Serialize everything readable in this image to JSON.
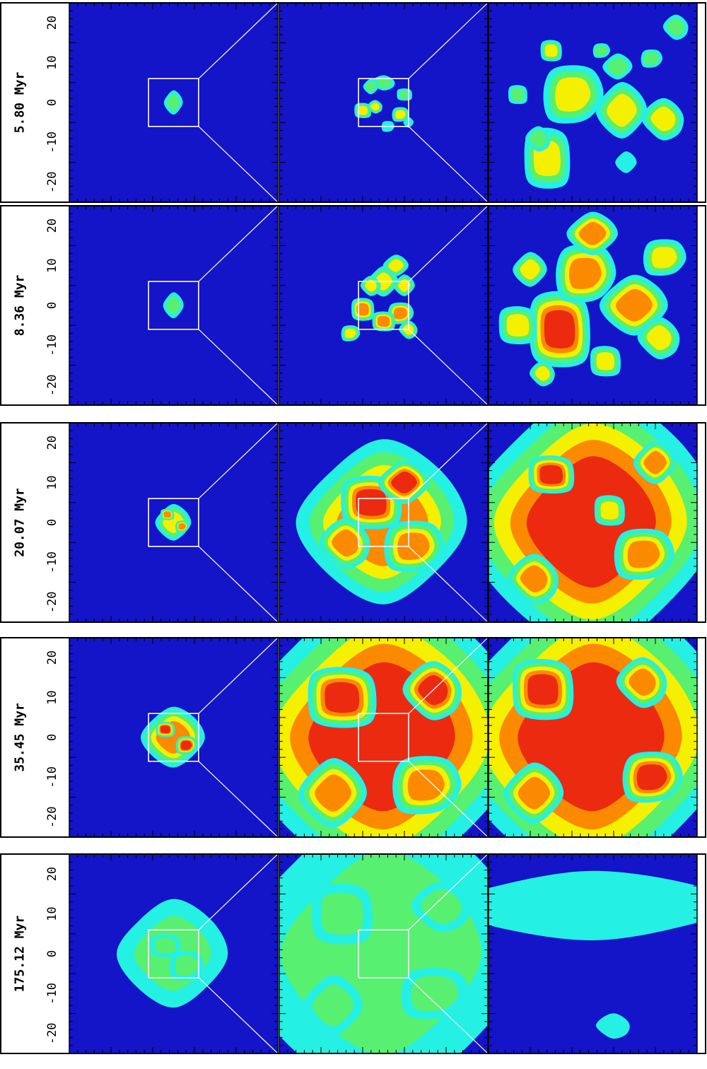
{
  "figure": {
    "palette": {
      "background": "#1414c8",
      "cyan": "#24f0e4",
      "green": "#58f070",
      "yellow": "#f4f000",
      "orange": "#fc8a00",
      "red": "#ec2a10",
      "pink": "#f6a8a0",
      "white": "#ffffff",
      "frame": "#000000",
      "zoom_line": "#ffffff"
    },
    "axis_tick_labels": [
      "20",
      "10",
      "0",
      "-10",
      "-20"
    ],
    "rows": [
      {
        "time_label": "5.80 Myr",
        "blobs": [
          [
            [
              0,
              0,
              2.2,
              2.8,
              2,
              0
            ]
          ],
          [
            [
              0,
              5,
              2.8,
              1.8,
              2,
              3
            ],
            [
              -5,
              -2,
              2.2,
              2.0,
              3,
              1
            ],
            [
              4,
              -3,
              2.0,
              2.0,
              3,
              2
            ],
            [
              -3,
              4,
              1.8,
              1.8,
              2,
              0
            ],
            [
              5,
              2,
              2.0,
              1.6,
              2,
              1
            ],
            [
              1,
              -6,
              1.5,
              1.5,
              1,
              2
            ],
            [
              -2,
              -1,
              1.8,
              1.6,
              3,
              3
            ],
            [
              6,
              -5,
              1.2,
              1.2,
              1,
              0
            ]
          ],
          [
            [
              7,
              -2,
              6,
              6.5,
              3,
              0
            ],
            [
              -11,
              -14,
              6,
              8,
              3,
              1
            ],
            [
              -5,
              2,
              7,
              8,
              3,
              2
            ],
            [
              17,
              -4,
              5,
              5,
              3,
              3
            ],
            [
              6,
              9,
              3.5,
              3,
              2,
              0
            ],
            [
              -10,
              13,
              2.8,
              2.8,
              3,
              1
            ],
            [
              14,
              11,
              2.5,
              2.5,
              2,
              2
            ],
            [
              -13,
              -9,
              3,
              3,
              2,
              3
            ],
            [
              8,
              -15,
              2.5,
              2.5,
              1,
              0
            ],
            [
              -18,
              2,
              2.5,
              2.5,
              2,
              1
            ],
            [
              2,
              13,
              2,
              2,
              2,
              2
            ],
            [
              20,
              19,
              3,
              3,
              2,
              3
            ]
          ]
        ]
      },
      {
        "time_label": "8.36 Myr",
        "blobs": [
          [
            [
              0,
              0,
              2.4,
              3.0,
              2,
              0
            ]
          ],
          [
            [
              0,
              6,
              3.5,
              3.5,
              3,
              0
            ],
            [
              -5,
              -1,
              3.0,
              3.0,
              4,
              1
            ],
            [
              4,
              -2,
              3.0,
              3.0,
              4,
              2
            ],
            [
              -3,
              5,
              2.4,
              2.4,
              3,
              3
            ],
            [
              5,
              5,
              2.5,
              2.5,
              3,
              0
            ],
            [
              0,
              -4,
              3.0,
              2.6,
              4,
              1
            ],
            [
              -8,
              -7,
              2.2,
              2.2,
              3,
              2
            ],
            [
              6,
              -6,
              2.2,
              2.2,
              3,
              3
            ],
            [
              3,
              10,
              3.0,
              2.5,
              3,
              0
            ]
          ],
          [
            [
              10,
              0,
              8,
              7,
              4,
              0
            ],
            [
              -8,
              -6,
              8,
              10,
              5,
              1
            ],
            [
              -2,
              8,
              7,
              8,
              4,
              2
            ],
            [
              16,
              -8,
              5,
              5,
              3,
              3
            ],
            [
              -15,
              9,
              4,
              4,
              3,
              0
            ],
            [
              3,
              -14,
              4,
              4,
              3,
              1
            ],
            [
              17,
              12,
              5,
              5,
              3,
              2
            ],
            [
              -12,
              -17,
              3,
              3,
              3,
              3
            ],
            [
              0,
              18,
              6,
              5,
              4,
              0
            ],
            [
              -18,
              -5,
              5,
              5,
              3,
              1
            ]
          ]
        ]
      },
      {
        "time_label": "20.07 Myr",
        "blobs": [
          [
            [
              0,
              0,
              4.2,
              4.2,
              3,
              0
            ],
            [
              -1.5,
              2,
              1.8,
              1.5,
              4,
              1
            ],
            [
              2,
              -1,
              1.6,
              1.6,
              4,
              2
            ]
          ],
          [
            [
              0,
              0,
              20,
              19,
              4,
              0
            ],
            [
              -3,
              5,
              8,
              7,
              5,
              1
            ],
            [
              7,
              -6,
              7,
              7,
              4,
              2
            ],
            [
              -9,
              -5,
              6,
              6,
              4,
              3
            ],
            [
              5,
              10,
              6,
              5,
              5,
              0
            ]
          ],
          [
            [
              0,
              0,
              30,
              30,
              5,
              0
            ],
            [
              -10,
              12,
              6,
              5,
              5,
              1
            ],
            [
              12,
              -8,
              7,
              7,
              4,
              2
            ],
            [
              -14,
              -14,
              6,
              6,
              4,
              3
            ],
            [
              15,
              15,
              5,
              5,
              4,
              0
            ],
            [
              4,
              3,
              4,
              4,
              3,
              1
            ]
          ]
        ]
      },
      {
        "time_label": "35.45 Myr",
        "blobs": [
          [
            [
              0,
              0,
              7.5,
              7.0,
              4,
              0
            ],
            [
              -2,
              2,
              2.5,
              2.0,
              5,
              1
            ],
            [
              3,
              -2,
              2.5,
              2.5,
              5,
              2
            ]
          ],
          [
            [
              0,
              0,
              34,
              34,
              5,
              0
            ],
            [
              -10,
              10,
              9,
              8,
              5,
              1
            ],
            [
              10,
              -12,
              8,
              8,
              4,
              2
            ],
            [
              12,
              12,
              7,
              7,
              5,
              3
            ],
            [
              -12,
              -14,
              8,
              8,
              4,
              0
            ]
          ],
          [
            [
              0,
              0,
              34,
              34,
              5,
              0
            ],
            [
              -12,
              12,
              8,
              8,
              5,
              1
            ],
            [
              14,
              -10,
              7,
              7,
              5,
              2
            ],
            [
              12,
              14,
              6,
              6,
              4,
              3
            ],
            [
              -14,
              -14,
              7,
              7,
              4,
              0
            ]
          ]
        ]
      },
      {
        "time_label": "175.12 Myr",
        "blobs": [
          [
            [
              0,
              0,
              13,
              12.5,
              2,
              0
            ],
            [
              -2,
              2,
              4,
              3,
              2,
              1
            ],
            [
              3,
              -3,
              4,
              4,
              2,
              2
            ]
          ],
          [
            [
              0,
              0,
              34,
              34,
              2,
              0
            ],
            [
              -10,
              10,
              8,
              8,
              2,
              1
            ],
            [
              12,
              -10,
              8,
              7,
              2,
              2
            ],
            [
              14,
              12,
              7,
              6,
              2,
              3
            ],
            [
              -12,
              -13,
              7,
              7,
              2,
              0
            ]
          ],
          [
            [
              0,
              12,
              34,
              8,
              1,
              0
            ],
            [
              -10,
              10,
              5,
              4,
              1,
              1
            ],
            [
              14,
              14,
              4,
              3,
              1,
              2
            ],
            [
              5,
              -18,
              4,
              3,
              1,
              3
            ]
          ]
        ]
      }
    ]
  }
}
